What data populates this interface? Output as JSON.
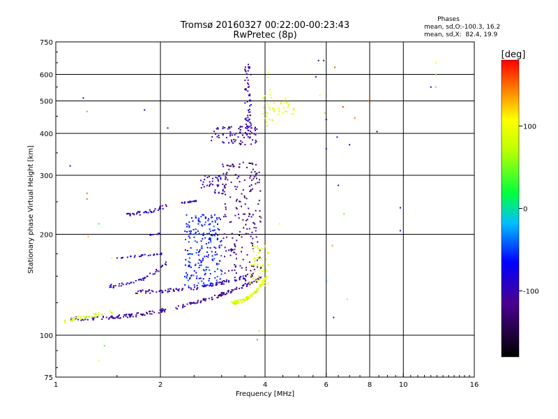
{
  "header": {
    "title": "Tromsø 20160327 00:22:00-00:23:43",
    "subtitle": "RwPretec (8p)"
  },
  "phases_box": {
    "heading": "Phases",
    "line_o": "mean, sd,O:-100.3, 16.2",
    "line_x": "mean, sd,X:  82.4, 19.9"
  },
  "colorbar": {
    "label": "[deg]",
    "ticks": [
      {
        "value": 100,
        "label": "100"
      },
      {
        "value": 0,
        "label": "0"
      },
      {
        "value": -100,
        "label": "-100"
      }
    ],
    "range": [
      -180,
      180
    ]
  },
  "chart_data": {
    "type": "scatter",
    "title": "Tromsø 20160327 00:22:00-00:23:43",
    "subtitle": "RwPretec (8p)",
    "xlabel": "Frequency [MHz]",
    "ylabel": "Stationary phase Virtual Height [km]",
    "xscale": "log",
    "yscale": "log",
    "xlim": [
      1,
      16
    ],
    "ylim": [
      75,
      750
    ],
    "xticks": [
      1,
      2,
      4,
      6,
      8,
      10,
      16
    ],
    "xtick_labels": [
      "1",
      "2",
      "4",
      "6",
      "8",
      "10",
      "16"
    ],
    "yticks": [
      75,
      100,
      200,
      300,
      400,
      500,
      600,
      750
    ],
    "ytick_labels": [
      "75",
      "100",
      "200",
      "300",
      "400",
      "500",
      "600",
      "750"
    ],
    "x_gridlines": [
      2,
      4,
      6,
      8,
      10
    ],
    "y_gridlines": [
      100,
      200,
      300,
      400,
      500,
      600
    ],
    "grid": true,
    "color_by": "phase [deg]",
    "segments": [
      {
        "mode": "O",
        "phase": -110,
        "x_range": [
          1.1,
          3.9
        ],
        "h_range": [
          112,
          148
        ],
        "shape": "curve",
        "count": 200
      },
      {
        "mode": "O",
        "phase": -100,
        "x_range": [
          1.7,
          3.7
        ],
        "h_range": [
          135,
          152
        ],
        "shape": "curve",
        "count": 90
      },
      {
        "mode": "O",
        "phase": -95,
        "x_range": [
          1.4,
          2.1
        ],
        "h_range": [
          140,
          165
        ],
        "shape": "curve",
        "count": 45
      },
      {
        "mode": "O",
        "phase": -90,
        "x_range": [
          1.5,
          2.05
        ],
        "h_range": [
          170,
          175
        ],
        "shape": "flat",
        "count": 30
      },
      {
        "mode": "O",
        "phase": -95,
        "x_range": [
          1.6,
          2.1
        ],
        "h_range": [
          230,
          245
        ],
        "shape": "curve",
        "count": 40
      },
      {
        "mode": "O",
        "phase": -95,
        "x_range": [
          2.3,
          2.55
        ],
        "h_range": [
          248,
          252
        ],
        "shape": "flat",
        "count": 20
      },
      {
        "mode": "O",
        "phase": -95,
        "x_range": [
          1.85,
          2.0
        ],
        "h_range": [
          199,
          201
        ],
        "shape": "flat",
        "count": 12
      },
      {
        "mode": "O",
        "phase": -60,
        "x_range": [
          2.35,
          3.0
        ],
        "h_range": [
          140,
          230
        ],
        "shape": "cloud",
        "count": 220
      },
      {
        "mode": "O",
        "phase": -120,
        "x_range": [
          3.0,
          3.9
        ],
        "h_range": [
          145,
          330
        ],
        "shape": "cloud",
        "count": 200
      },
      {
        "mode": "O",
        "phase": -100,
        "x_range": [
          2.6,
          3.1
        ],
        "h_range": [
          265,
          300
        ],
        "shape": "cloud",
        "count": 40
      },
      {
        "mode": "O",
        "phase": -110,
        "x_range": [
          2.8,
          3.8
        ],
        "h_range": [
          370,
          420
        ],
        "shape": "cloud",
        "count": 70
      },
      {
        "mode": "O",
        "phase": -100,
        "x_range": [
          3.5,
          3.65
        ],
        "h_range": [
          380,
          650
        ],
        "shape": "vertical",
        "count": 70
      },
      {
        "mode": "X",
        "phase": 80,
        "x_range": [
          1.05,
          1.5
        ],
        "h_range": [
          110,
          118
        ],
        "shape": "flat",
        "count": 40
      },
      {
        "mode": "X",
        "phase": 85,
        "x_range": [
          3.2,
          4.05
        ],
        "h_range": [
          125,
          150
        ],
        "shape": "curve",
        "count": 110
      },
      {
        "mode": "X",
        "phase": 90,
        "x_range": [
          3.6,
          4.1
        ],
        "h_range": [
          140,
          185
        ],
        "shape": "cloud",
        "count": 60
      },
      {
        "mode": "X",
        "phase": 95,
        "x_range": [
          3.9,
          4.9
        ],
        "h_range": [
          450,
          520
        ],
        "shape": "cloud",
        "count": 35
      },
      {
        "mode": "X",
        "phase": 85,
        "x_range": [
          4.0,
          4.2
        ],
        "h_range": [
          420,
          640
        ],
        "shape": "vertical",
        "count": 12
      }
    ],
    "scattered_points": [
      {
        "x": 1.2,
        "h": 510,
        "phase": -80
      },
      {
        "x": 1.23,
        "h": 465,
        "phase": 140
      },
      {
        "x": 1.23,
        "h": 265,
        "phase": 150
      },
      {
        "x": 1.23,
        "h": 255,
        "phase": 150
      },
      {
        "x": 1.24,
        "h": 197,
        "phase": 130
      },
      {
        "x": 1.33,
        "h": 215,
        "phase": 30
      },
      {
        "x": 1.38,
        "h": 93,
        "phase": 40
      },
      {
        "x": 1.33,
        "h": 84,
        "phase": 100
      },
      {
        "x": 1.45,
        "h": 170,
        "phase": 110
      },
      {
        "x": 1.1,
        "h": 320,
        "phase": -100
      },
      {
        "x": 1.8,
        "h": 470,
        "phase": -80
      },
      {
        "x": 2.1,
        "h": 415,
        "phase": -110
      },
      {
        "x": 3.8,
        "h": 97,
        "phase": 150
      },
      {
        "x": 3.85,
        "h": 103,
        "phase": 60
      },
      {
        "x": 3.9,
        "h": 225,
        "phase": 140
      },
      {
        "x": 4.4,
        "h": 215,
        "phase": 100
      },
      {
        "x": 5.6,
        "h": 590,
        "phase": -120
      },
      {
        "x": 5.75,
        "h": 520,
        "phase": 100
      },
      {
        "x": 5.9,
        "h": 660,
        "phase": -130
      },
      {
        "x": 5.95,
        "h": 460,
        "phase": 130
      },
      {
        "x": 6.0,
        "h": 360,
        "phase": -100
      },
      {
        "x": 6.0,
        "h": 440,
        "phase": -160
      },
      {
        "x": 6.35,
        "h": 630,
        "phase": 160
      },
      {
        "x": 6.45,
        "h": 390,
        "phase": -80
      },
      {
        "x": 6.5,
        "h": 280,
        "phase": -100
      },
      {
        "x": 6.7,
        "h": 480,
        "phase": 170
      },
      {
        "x": 6.75,
        "h": 230,
        "phase": 40
      },
      {
        "x": 6.9,
        "h": 128,
        "phase": 120
      },
      {
        "x": 7.0,
        "h": 370,
        "phase": -80
      },
      {
        "x": 7.25,
        "h": 445,
        "phase": 150
      },
      {
        "x": 7.95,
        "h": 500,
        "phase": 150
      },
      {
        "x": 8.4,
        "h": 405,
        "phase": -160
      },
      {
        "x": 9.8,
        "h": 240,
        "phase": -80
      },
      {
        "x": 9.8,
        "h": 205,
        "phase": -80
      },
      {
        "x": 12.0,
        "h": 550,
        "phase": -80
      },
      {
        "x": 12.4,
        "h": 650,
        "phase": 100
      },
      {
        "x": 12.4,
        "h": 600,
        "phase": 40
      },
      {
        "x": 12.4,
        "h": 550,
        "phase": 40
      },
      {
        "x": 6.3,
        "h": 113,
        "phase": -60
      },
      {
        "x": 6.25,
        "h": 185,
        "phase": 140
      },
      {
        "x": 6.0,
        "h": 145,
        "phase": -40
      },
      {
        "x": 5.7,
        "h": 660,
        "phase": -130
      }
    ]
  }
}
